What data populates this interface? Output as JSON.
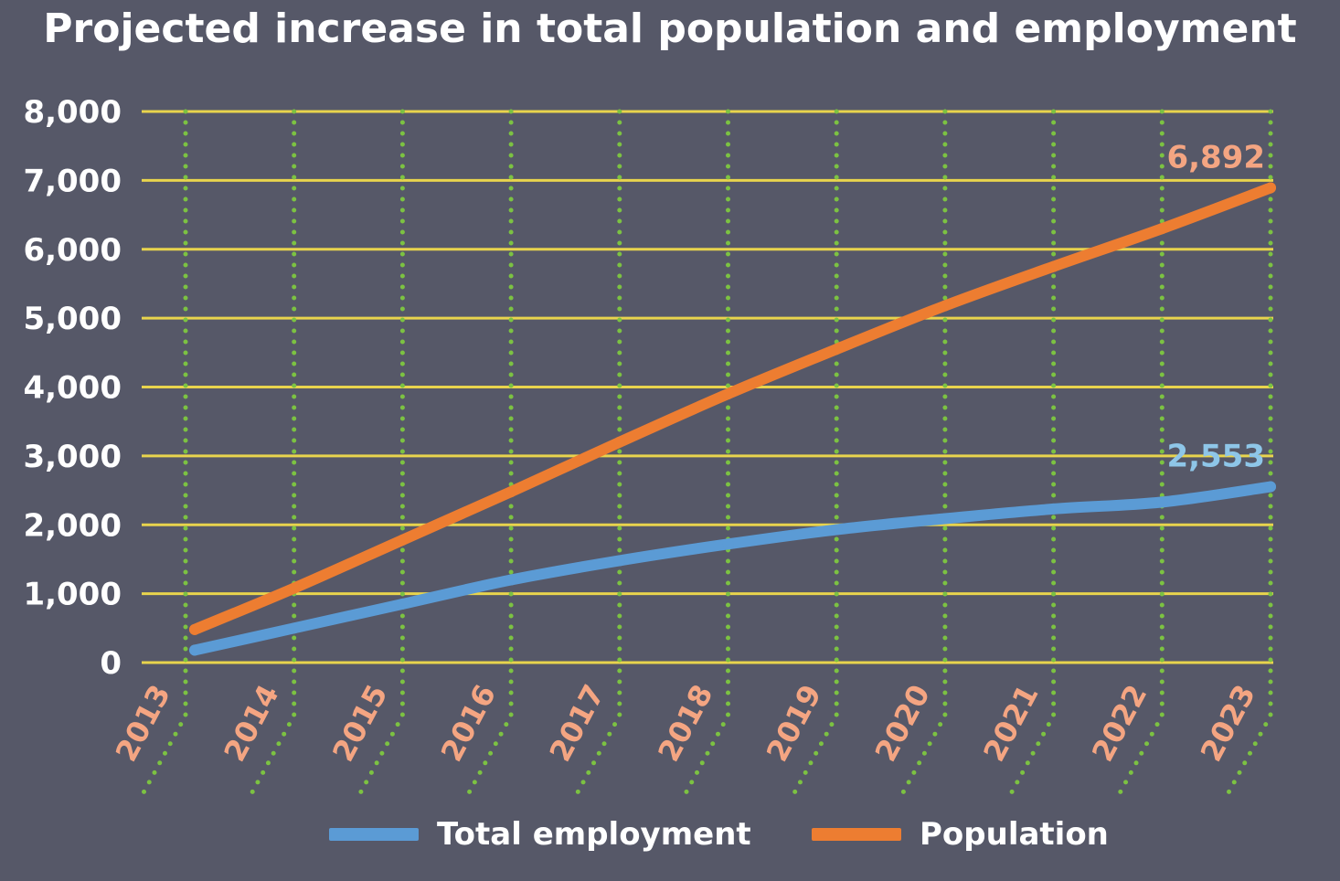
{
  "chart_data": {
    "type": "line",
    "title": "Projected increase in total population and employment",
    "x": [
      "2013",
      "2014",
      "2015",
      "2016",
      "2017",
      "2018",
      "2019",
      "2020",
      "2021",
      "2022",
      "2023"
    ],
    "ylim": [
      0,
      8000
    ],
    "yticks": [
      "0",
      "1,000",
      "2,000",
      "3,000",
      "4,000",
      "5,000",
      "6,000",
      "7,000",
      "8,000"
    ],
    "grid": true,
    "legend_position": "bottom",
    "series": [
      {
        "name": "Total employment",
        "color": "#5b9bd5",
        "values": [
          180,
          500,
          850,
          1200,
          1480,
          1720,
          1930,
          2090,
          2230,
          2330,
          2553
        ],
        "end_label": "2,553",
        "end_label_color": "#8ec6e8"
      },
      {
        "name": "Population",
        "color": "#ed7d31",
        "values": [
          480,
          1080,
          1780,
          2480,
          3200,
          3900,
          4550,
          5180,
          5750,
          6300,
          6892
        ],
        "end_label": "6,892",
        "end_label_color": "#f4a582"
      }
    ],
    "colors": {
      "background": "#565868",
      "horizontal_grid": "#e8d44d",
      "vertical_grid": "#7cc242",
      "x_tick_labels": "#f4a582",
      "y_tick_labels": "#ffffff"
    }
  }
}
